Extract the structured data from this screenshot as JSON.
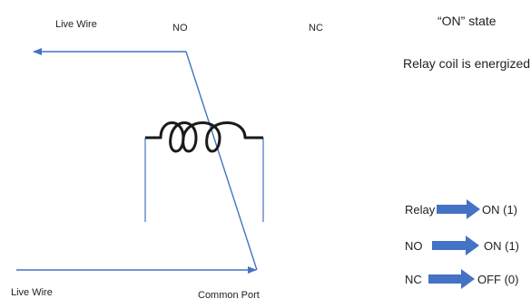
{
  "diagram": {
    "labels": {
      "live_wire_top": "Live Wire",
      "no": "NO",
      "nc": "NC",
      "live_wire_bottom": "Live Wire",
      "common_port": "Common Port"
    },
    "state_title": "“ON” state",
    "state_subtitle": "Relay coil is energized",
    "status": [
      {
        "name": "Relay",
        "value": "ON (1)"
      },
      {
        "name": "NO",
        "value": "ON (1)"
      },
      {
        "name": "NC",
        "value": "OFF (0)"
      }
    ],
    "colors": {
      "wire": "#4472c4",
      "coil": "#1a1a1a",
      "status_arrow": "#4472c4"
    }
  }
}
